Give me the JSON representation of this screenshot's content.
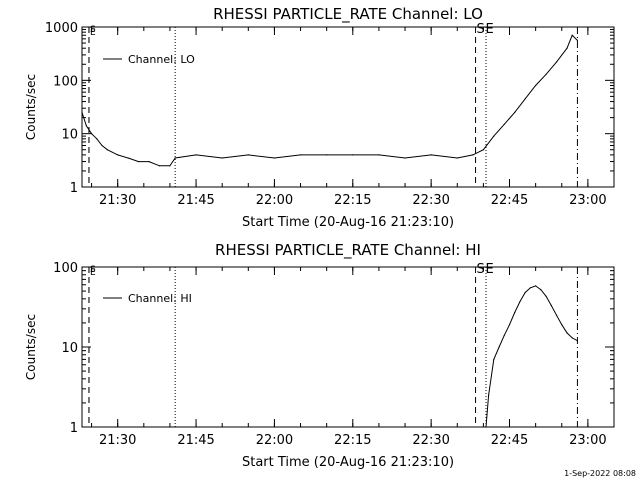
{
  "footer": {
    "timestamp": "1-Sep-2022 08:08"
  },
  "chart_data": [
    {
      "type": "line",
      "title": "RHESSI PARTICLE_RATE Channel: LO",
      "xlabel": "Start Time (20-Aug-16 21:23:10)",
      "ylabel": "Counts/sec",
      "yscale": "log",
      "ylim": [
        1,
        1000
      ],
      "xlim": [
        "21:23:10",
        "23:05:00"
      ],
      "x_ticks": [
        "21:30",
        "21:45",
        "22:00",
        "22:15",
        "22:30",
        "22:45",
        "23:00"
      ],
      "y_ticks": [
        "1",
        "10",
        "100",
        "1000"
      ],
      "legend": {
        "entries": [
          "Channel: LO"
        ],
        "placement": "top-left"
      },
      "annotations": [
        {
          "label": "S",
          "time": "21:24:30",
          "style": "dashed"
        },
        {
          "label": "E",
          "time": "21:24:30",
          "style": "dashed"
        },
        {
          "label": "",
          "time": "21:41:00",
          "style": "dotted"
        },
        {
          "label": "S",
          "time": "22:38:30",
          "style": "dashed"
        },
        {
          "label": "E",
          "time": "22:40:30",
          "style": "dotted"
        },
        {
          "label": "",
          "time": "22:58:00",
          "style": "dash-dot"
        }
      ],
      "series": [
        {
          "name": "Channel: LO",
          "x": [
            "21:23:10",
            "21:24:00",
            "21:25:00",
            "21:26:00",
            "21:27:00",
            "21:28:00",
            "21:30:00",
            "21:32:00",
            "21:34:00",
            "21:36:00",
            "21:38:00",
            "21:40:00",
            "21:41:00",
            "21:45:00",
            "21:50:00",
            "21:55:00",
            "22:00:00",
            "22:05:00",
            "22:10:00",
            "22:15:00",
            "22:20:00",
            "22:25:00",
            "22:30:00",
            "22:35:00",
            "22:38:00",
            "22:40:00",
            "22:42:00",
            "22:44:00",
            "22:46:00",
            "22:48:00",
            "22:50:00",
            "22:52:00",
            "22:54:00",
            "22:56:00",
            "22:57:00",
            "22:58:00"
          ],
          "y": [
            25,
            14,
            10,
            8,
            6,
            5,
            4,
            3.5,
            3,
            3,
            2.5,
            2.5,
            3.5,
            4,
            3.5,
            4,
            3.5,
            4,
            4,
            4,
            4,
            3.5,
            4,
            3.5,
            4,
            5,
            9,
            15,
            25,
            45,
            80,
            130,
            220,
            400,
            700,
            560
          ]
        }
      ]
    },
    {
      "type": "line",
      "title": "RHESSI PARTICLE_RATE Channel: HI",
      "xlabel": "Start Time (20-Aug-16 21:23:10)",
      "ylabel": "Counts/sec",
      "yscale": "log",
      "ylim": [
        1,
        100
      ],
      "xlim": [
        "21:23:10",
        "23:05:00"
      ],
      "x_ticks": [
        "21:30",
        "21:45",
        "22:00",
        "22:15",
        "22:30",
        "22:45",
        "23:00"
      ],
      "y_ticks": [
        "1",
        "10",
        "100"
      ],
      "legend": {
        "entries": [
          "Channel: HI"
        ],
        "placement": "top-left"
      },
      "annotations": [
        {
          "label": "S",
          "time": "21:24:30",
          "style": "dashed"
        },
        {
          "label": "E",
          "time": "21:24:30",
          "style": "dashed"
        },
        {
          "label": "",
          "time": "21:41:00",
          "style": "dotted"
        },
        {
          "label": "S",
          "time": "22:38:30",
          "style": "dashed"
        },
        {
          "label": "E",
          "time": "22:40:30",
          "style": "dotted"
        },
        {
          "label": "",
          "time": "22:58:00",
          "style": "dash-dot"
        }
      ],
      "series": [
        {
          "name": "Channel: HI",
          "x": [
            "22:40:30",
            "22:41:00",
            "22:42:00",
            "22:43:00",
            "22:44:00",
            "22:45:00",
            "22:46:00",
            "22:47:00",
            "22:48:00",
            "22:49:00",
            "22:50:00",
            "22:51:00",
            "22:52:00",
            "22:53:00",
            "22:54:00",
            "22:55:00",
            "22:56:00",
            "22:57:00",
            "22:58:00"
          ],
          "y": [
            1,
            2.5,
            7,
            10,
            14,
            19,
            27,
            37,
            48,
            55,
            58,
            52,
            43,
            33,
            25,
            19,
            15,
            13,
            12
          ]
        }
      ]
    }
  ]
}
